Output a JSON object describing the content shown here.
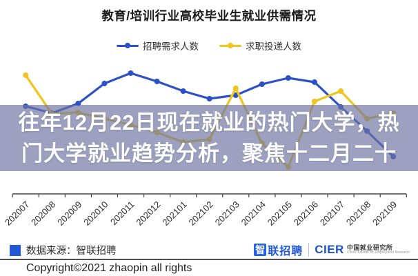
{
  "title": "教育/培训行业高校毕业生就业供需情况",
  "legend": {
    "items": [
      {
        "label": "招聘需求人数",
        "color": "#2b50c8"
      },
      {
        "label": "求职投递人数",
        "color": "#f2c41e"
      }
    ]
  },
  "overlay": {
    "line1": "往年12月22日现在就业的热门大学，热",
    "line2": "门大学就业趋势分析，聚焦十二月二十"
  },
  "footer": {
    "source_label": "数据来源：智联招聘",
    "logo_zhi": "智",
    "logo_lian": "联招聘",
    "logo_cier": "CIER",
    "logo_cier_cn": "中国就业研究所",
    "logo_cier_en": "China Institute for Employment Research",
    "copyright": "Copyright©2021 zhaopin all rights"
  },
  "chart_data": {
    "type": "line",
    "title": "教育/培训行业高校毕业生就业供需情况",
    "xlabel": "",
    "ylabel": "",
    "y_axis_visible": false,
    "grid": false,
    "legend_position": "top",
    "ylim": [
      0,
      200
    ],
    "categories": [
      "202007",
      "202008",
      "202009",
      "202010",
      "202011",
      "202012",
      "202101",
      "202102",
      "202103",
      "202104",
      "202105",
      "202106",
      "202107",
      "202108",
      "202109"
    ],
    "series": [
      {
        "name": "招聘需求人数",
        "color": "#2b50c8",
        "values": [
          127,
          117,
          131,
          160,
          175,
          163,
          149,
          138,
          143,
          159,
          168,
          162,
          126,
          91,
          54
        ]
      },
      {
        "name": "求职投递人数",
        "color": "#f2c41e",
        "values": [
          172,
          116,
          118,
          109,
          100,
          89,
          75,
          79,
          153,
          73,
          39,
          134,
          149,
          109,
          117
        ]
      }
    ]
  }
}
